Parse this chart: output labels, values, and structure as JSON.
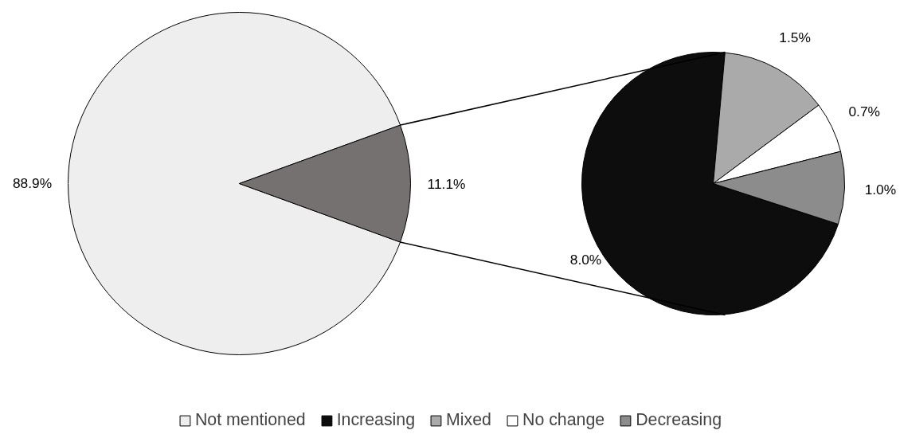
{
  "chart_data": [
    {
      "type": "pie",
      "categories": [
        "Not mentioned",
        null
      ],
      "values": [
        88.9,
        11.1
      ],
      "colors": [
        "#eeeeee",
        "#767171"
      ],
      "value_labels": [
        "88.9%",
        "11.1%"
      ],
      "legend": "bottom"
    },
    {
      "type": "pie",
      "categories": [
        "Increasing",
        "Mixed",
        "No change",
        "Decreasing"
      ],
      "values": [
        8.0,
        1.5,
        0.7,
        1.0
      ],
      "colors": [
        "#0d0d0d",
        "#aaaaaa",
        "#ffffff",
        "#8c8c8c"
      ],
      "value_labels": [
        "8.0%",
        "1.5%",
        "0.7%",
        "1.0%"
      ],
      "legend": "bottom"
    }
  ]
}
